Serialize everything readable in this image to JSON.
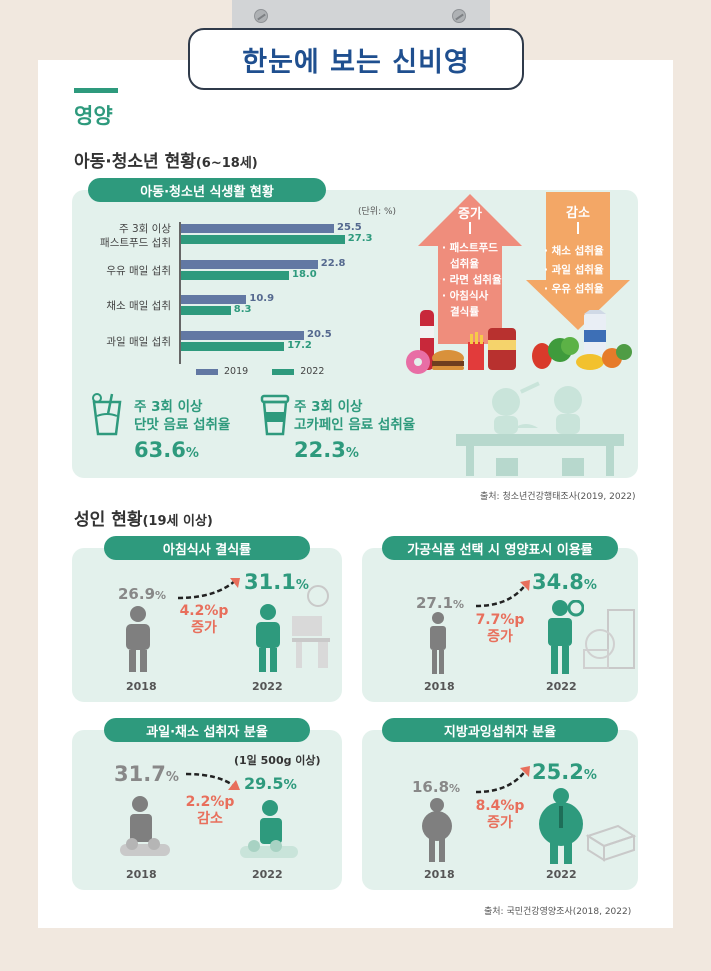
{
  "header": {
    "title": "한눈에 보는 신비영"
  },
  "section": {
    "label": "영양"
  },
  "youth": {
    "heading": "아동·청소년 현황",
    "heading_range": "(6~18세)",
    "panel_title": "아동·청소년 식생활 현황",
    "unit": "(단위: %)",
    "chart_data": {
      "type": "bar",
      "categories": [
        "주 3회 이상 패스트푸드 섭취",
        "우유 매일 섭취",
        "채소 매일 섭취",
        "과일 매일 섭취"
      ],
      "category_lines": [
        [
          "주 3회 이상",
          "패스트푸드 섭취"
        ],
        [
          "우유 매일 섭취"
        ],
        [
          "채소 매일 섭취"
        ],
        [
          "과일 매일 섭취"
        ]
      ],
      "series": [
        {
          "name": "2019",
          "values": [
            25.5,
            22.8,
            10.9,
            20.5
          ],
          "color": "#6278a3"
        },
        {
          "name": "2022",
          "values": [
            27.3,
            18.0,
            8.3,
            17.2
          ],
          "color": "#2e9a7d"
        }
      ],
      "value_labels": [
        [
          "25.5",
          "22.8",
          "10.9",
          "20.5"
        ],
        [
          "27.3",
          "18.0",
          "8.3",
          "17.2"
        ]
      ],
      "xlim": [
        0,
        30
      ],
      "orientation": "horizontal",
      "legend": "bottom",
      "grid": false
    },
    "increase": {
      "label": "증가",
      "items": [
        "· 패스트푸드",
        "섭취율",
        "· 라면 섭취율",
        "· 아침식사",
        "결식률"
      ],
      "color": "#ef8d7c"
    },
    "decrease": {
      "label": "감소",
      "items": [
        "· 채소 섭취율",
        "· 과일 섭취율",
        "· 우유 섭취율"
      ],
      "color": "#f3a766"
    },
    "stats": [
      {
        "title_line1": "주 3회 이상",
        "title_line2": "단맛 음료 섭취율",
        "value": "63.6",
        "unit": "%",
        "icon": "drink-cup-icon"
      },
      {
        "title_line1": "주 3회 이상",
        "title_line2": "고카페인 음료 섭취율",
        "value": "22.3",
        "unit": "%",
        "icon": "coffee-cup-icon"
      }
    ],
    "source": "출처: 청소년건강행태조사(2019, 2022)"
  },
  "adult": {
    "heading": "성인 현황",
    "heading_range": "(19세 이상)",
    "cards": [
      {
        "title": "아침식사 결식률",
        "v2018": "26.9",
        "v2022": "31.1",
        "unit": "%",
        "change": "4.2%p",
        "change_word": "증가",
        "y1": "2018",
        "y2": "2022"
      },
      {
        "title": "가공식품 선택 시 영양표시 이용률",
        "v2018": "27.1",
        "v2022": "34.8",
        "unit": "%",
        "change": "7.7%p",
        "change_word": "증가",
        "y1": "2018",
        "y2": "2022"
      },
      {
        "title": "과일·채소 섭취자 분율",
        "note": "(1일 500g 이상)",
        "v2018": "31.7",
        "v2022": "29.5",
        "unit": "%",
        "change": "2.2%p",
        "change_word": "감소",
        "y1": "2018",
        "y2": "2022"
      },
      {
        "title": "지방과잉섭취자 분율",
        "v2018": "16.8",
        "v2022": "25.2",
        "unit": "%",
        "change": "8.4%p",
        "change_word": "증가",
        "y1": "2018",
        "y2": "2022"
      }
    ],
    "source": "출처: 국민건강영양조사(2018, 2022)"
  },
  "colors": {
    "green": "#2e9a7d",
    "panel": "#e3f1ec",
    "accent_red": "#e86f5c",
    "navy": "#1f4f8f"
  }
}
